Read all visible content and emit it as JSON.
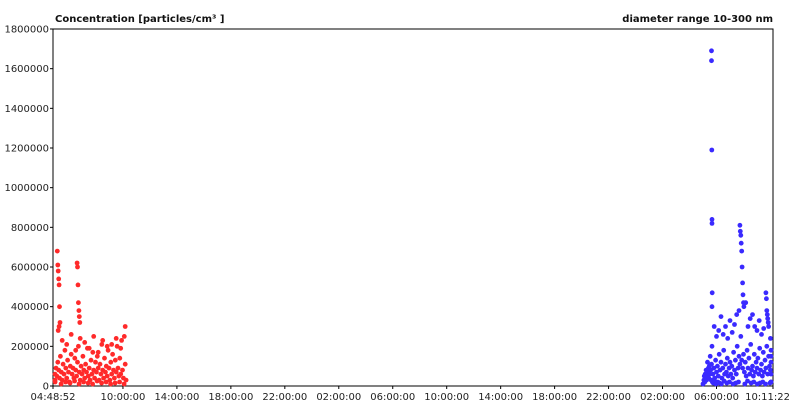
{
  "chart_data": {
    "type": "scatter",
    "title": "Concentration [particles/cm³ ]",
    "subtitle": "diameter range 10-300 nm",
    "xlabel": "",
    "ylabel": "",
    "x_ticks": [
      "04:48:52",
      "10:00:00",
      "14:00:00",
      "18:00:00",
      "22:00:00",
      "02:00:00",
      "06:00:00",
      "10:00:00",
      "14:00:00",
      "18:00:00",
      "22:00:00",
      "02:00:00",
      "06:00:00",
      "10:11:22"
    ],
    "y_ticks": [
      "0",
      "200000",
      "400000",
      "600000",
      "800000",
      "1000000",
      "1200000",
      "1400000",
      "1600000",
      "1800000"
    ],
    "xlim": [
      "04:48:52",
      "10:11:22"
    ],
    "ylim": [
      0,
      1800000
    ],
    "grid": false,
    "series": [
      {
        "color": "#ff2a2a",
        "x": [
          "04:48:52",
          "04:53",
          "04:58",
          "05:02",
          "05:06",
          "05:10",
          "05:14",
          "05:18",
          "05:22",
          "05:26",
          "05:30",
          "05:34",
          "05:38",
          "05:42",
          "05:46",
          "05:50",
          "05:54",
          "05:58",
          "06:02",
          "06:06",
          "06:10",
          "06:14",
          "06:18",
          "06:22",
          "06:26",
          "06:30",
          "06:34",
          "06:38",
          "06:42",
          "06:46",
          "06:50",
          "06:54",
          "06:58",
          "07:02",
          "07:06",
          "07:10",
          "07:14",
          "07:18",
          "07:22",
          "07:26",
          "07:30",
          "07:34",
          "07:38",
          "07:42",
          "07:46",
          "07:50",
          "07:54",
          "07:58",
          "08:02",
          "08:06",
          "08:10",
          "08:14",
          "08:18",
          "08:22",
          "08:26",
          "08:30",
          "08:34",
          "08:38",
          "08:42",
          "08:46",
          "08:50",
          "08:54",
          "08:58",
          "09:02",
          "09:06",
          "09:10",
          "09:14",
          "09:18",
          "09:22",
          "09:26",
          "09:30",
          "09:34",
          "09:38",
          "09:42",
          "09:46",
          "09:50",
          "09:54",
          "09:58",
          "10:02",
          "10:06",
          "10:10",
          "10:14",
          "05:08",
          "05:10",
          "05:12",
          "05:14",
          "05:16",
          "05:18",
          "05:20",
          "05:12",
          "05:16",
          "06:36",
          "06:38",
          "06:40",
          "06:42",
          "06:44",
          "06:46",
          "06:48",
          "05:30",
          "05:50",
          "06:10",
          "06:30",
          "06:50",
          "07:10",
          "07:30",
          "07:50",
          "08:10",
          "08:30",
          "08:50",
          "09:10",
          "09:30",
          "09:50",
          "10:10",
          "05:25",
          "05:45",
          "06:05",
          "06:25",
          "06:45",
          "07:05",
          "07:25",
          "07:45",
          "08:05",
          "08:25",
          "08:45",
          "09:05",
          "09:25",
          "09:45",
          "10:05"
        ],
        "y": [
          30000,
          60000,
          20000,
          90000,
          50000,
          120000,
          80000,
          40000,
          150000,
          70000,
          30000,
          110000,
          60000,
          180000,
          90000,
          40000,
          130000,
          70000,
          20000,
          100000,
          160000,
          60000,
          90000,
          40000,
          140000,
          80000,
          50000,
          120000,
          200000,
          70000,
          30000,
          100000,
          60000,
          150000,
          80000,
          40000,
          110000,
          70000,
          190000,
          50000,
          90000,
          30000,
          130000,
          60000,
          170000,
          80000,
          40000,
          120000,
          70000,
          150000,
          90000,
          30000,
          110000,
          60000,
          210000,
          80000,
          40000,
          140000,
          70000,
          100000,
          50000,
          180000,
          90000,
          30000,
          120000,
          60000,
          160000,
          80000,
          40000,
          130000,
          70000,
          200000,
          90000,
          50000,
          140000,
          60000,
          230000,
          80000,
          40000,
          250000,
          110000,
          30000,
          680000,
          610000,
          580000,
          540000,
          510000,
          400000,
          320000,
          280000,
          300000,
          620000,
          600000,
          510000,
          420000,
          380000,
          350000,
          320000,
          230000,
          210000,
          260000,
          180000,
          240000,
          220000,
          190000,
          250000,
          170000,
          230000,
          200000,
          210000,
          240000,
          190000,
          300000,
          10000,
          20000,
          15000,
          25000,
          10000,
          20000,
          15000,
          10000,
          25000,
          15000,
          20000,
          10000,
          15000,
          20000,
          10000
        ]
      },
      {
        "color": "#3a2aff",
        "x": [
          "05:00",
          "05:04",
          "05:06",
          "05:08",
          "05:10",
          "05:12",
          "05:14",
          "05:16",
          "05:18",
          "05:20",
          "05:22",
          "05:24",
          "05:26",
          "05:28",
          "05:30",
          "05:32",
          "05:34",
          "05:36",
          "05:38",
          "05:40",
          "05:44",
          "05:48",
          "05:52",
          "05:56",
          "06:00",
          "06:04",
          "06:08",
          "06:12",
          "06:16",
          "06:20",
          "06:24",
          "06:28",
          "06:32",
          "06:36",
          "06:40",
          "06:44",
          "06:48",
          "06:52",
          "06:56",
          "07:00",
          "07:04",
          "07:08",
          "07:12",
          "07:16",
          "07:20",
          "07:24",
          "07:28",
          "07:32",
          "07:36",
          "07:40",
          "07:44",
          "07:48",
          "07:52",
          "07:56",
          "08:00",
          "08:04",
          "08:08",
          "08:12",
          "08:16",
          "08:20",
          "08:24",
          "08:28",
          "08:32",
          "08:36",
          "08:40",
          "08:44",
          "08:48",
          "08:52",
          "08:56",
          "09:00",
          "09:04",
          "09:08",
          "09:12",
          "09:16",
          "09:20",
          "09:24",
          "09:28",
          "09:32",
          "09:36",
          "09:40",
          "09:44",
          "09:48",
          "09:52",
          "09:56",
          "10:00",
          "10:04",
          "10:08",
          "10:11:22",
          "05:38",
          "05:38",
          "05:39",
          "05:40",
          "05:40",
          "05:41",
          "07:44",
          "07:46",
          "07:48",
          "07:50",
          "07:52",
          "07:54",
          "07:56",
          "07:58",
          "08:00",
          "08:02",
          "09:40",
          "09:42",
          "09:44",
          "09:46",
          "09:48",
          "09:50",
          "09:52",
          "05:40",
          "05:50",
          "06:00",
          "06:10",
          "06:20",
          "06:30",
          "06:40",
          "06:50",
          "07:00",
          "07:10",
          "07:20",
          "07:30",
          "07:40",
          "08:10",
          "08:20",
          "08:30",
          "08:40",
          "08:50",
          "09:00",
          "09:10",
          "09:20",
          "09:30",
          "10:00",
          "10:05",
          "10:10",
          "05:42",
          "05:46",
          "05:52",
          "05:58",
          "06:06",
          "06:14",
          "06:22",
          "06:34",
          "06:46",
          "06:58",
          "07:14",
          "07:26",
          "07:38",
          "08:06",
          "08:18",
          "08:34",
          "08:46",
          "09:02",
          "09:14",
          "09:26",
          "09:38",
          "09:58",
          "10:06"
        ],
        "y": [
          10000,
          30000,
          50000,
          20000,
          60000,
          40000,
          80000,
          30000,
          70000,
          120000,
          50000,
          90000,
          40000,
          100000,
          60000,
          150000,
          80000,
          30000,
          110000,
          200000,
          60000,
          90000,
          40000,
          130000,
          70000,
          100000,
          50000,
          160000,
          80000,
          120000,
          40000,
          90000,
          180000,
          60000,
          110000,
          70000,
          140000,
          50000,
          90000,
          120000,
          60000,
          100000,
          40000,
          170000,
          80000,
          130000,
          60000,
          200000,
          90000,
          150000,
          110000,
          250000,
          130000,
          90000,
          160000,
          70000,
          120000,
          50000,
          180000,
          90000,
          140000,
          60000,
          210000,
          80000,
          100000,
          50000,
          160000,
          70000,
          120000,
          90000,
          140000,
          60000,
          190000,
          80000,
          110000,
          50000,
          170000,
          70000,
          130000,
          90000,
          200000,
          60000,
          150000,
          100000,
          80000,
          120000,
          60000,
          20000,
          1690000,
          1640000,
          1190000,
          840000,
          820000,
          470000,
          810000,
          780000,
          760000,
          720000,
          680000,
          600000,
          520000,
          460000,
          420000,
          400000,
          470000,
          440000,
          380000,
          360000,
          340000,
          320000,
          300000,
          400000,
          300000,
          250000,
          280000,
          350000,
          260000,
          300000,
          240000,
          330000,
          270000,
          310000,
          360000,
          380000,
          420000,
          300000,
          340000,
          360000,
          300000,
          280000,
          330000,
          260000,
          290000,
          240000,
          180000,
          150000,
          20000,
          15000,
          25000,
          10000,
          20000,
          15000,
          10000,
          25000,
          15000,
          20000,
          10000,
          15000,
          20000,
          10000,
          25000,
          15000,
          20000,
          10000,
          15000,
          20000,
          10000,
          15000,
          20000
        ]
      }
    ]
  }
}
